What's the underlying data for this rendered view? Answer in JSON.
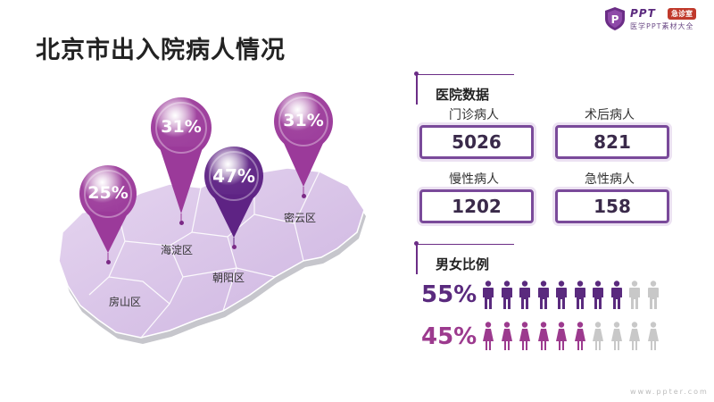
{
  "title": "北京市出入院病人情况",
  "logo": {
    "brand": "PPT",
    "badge": "急诊室",
    "tagline": "医学PPT素材大全",
    "shield_letter": "P"
  },
  "map": {
    "pins": [
      {
        "district": "房山区",
        "percent": "25%",
        "color": "#9b3a9a",
        "highlight": false
      },
      {
        "district": "海淀区",
        "percent": "31%",
        "color": "#9b3a9a",
        "highlight": false
      },
      {
        "district": "朝阳区",
        "percent": "47%",
        "color": "#5e2384",
        "highlight": true
      },
      {
        "district": "密云区",
        "percent": "31%",
        "color": "#9b3a9a",
        "highlight": false
      }
    ],
    "map_color": "#dcc7ea"
  },
  "hospital": {
    "heading": "医院数据",
    "stats": [
      {
        "label": "门诊病人",
        "value": "5026"
      },
      {
        "label": "术后病人",
        "value": "821"
      },
      {
        "label": "慢性病人",
        "value": "1202"
      },
      {
        "label": "急性病人",
        "value": "158"
      }
    ]
  },
  "gender": {
    "heading": "男女比例",
    "rows": [
      {
        "percent": "55%",
        "icon": "male-person-icon",
        "filled": 8,
        "total": 10,
        "color": "#5a2a7e"
      },
      {
        "percent": "45%",
        "icon": "female-person-icon",
        "filled": 6,
        "total": 10,
        "color": "#9c3a8e"
      }
    ]
  },
  "colors": {
    "accent": "#6b2d86",
    "inactive_icon": "#c8c8c8"
  },
  "footer_url": "www.ppter.com"
}
